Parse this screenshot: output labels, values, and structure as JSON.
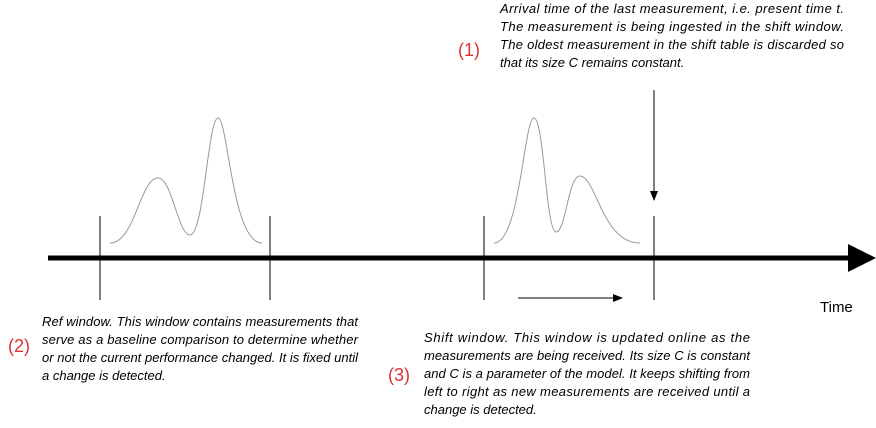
{
  "annotations": [
    {
      "number": "(1)",
      "lines": [
        "Arrival time of the last measurement, i.e. present time t.",
        "The measurement is being ingested in the shift window.",
        "The oldest measurement in the shift table is discarded so",
        "that its size C remains constant."
      ]
    },
    {
      "number": "(2)",
      "lines": [
        "Ref window. This window contains measurements that",
        "serve as a baseline comparison to determine whether",
        "or not the  current performance changed. It is fixed until",
        "a change is detected."
      ]
    },
    {
      "number": "(3)",
      "lines": [
        "Shift window. This window is updated online as the",
        "measurements are being received. Its size C is constant",
        "and C is a parameter of the model. It keeps shifting from",
        "left to right as new measurements are received until a",
        "change is detected."
      ]
    }
  ],
  "axis_label": "Time"
}
